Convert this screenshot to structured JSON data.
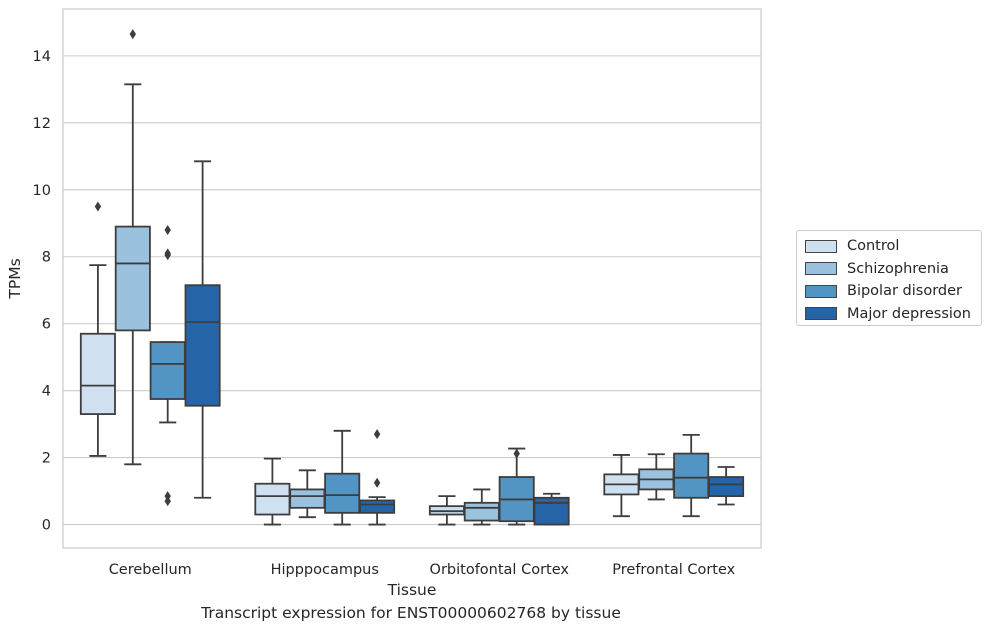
{
  "chart_data": {
    "type": "box",
    "caption": "Transcript expression for ENST00000602768 by tissue",
    "xlabel": "Tissue",
    "ylabel": "TPMs",
    "ylim": [
      -0.7,
      15.4
    ],
    "yticks": [
      0,
      2,
      4,
      6,
      8,
      10,
      12,
      14
    ],
    "grid": "horizontal",
    "legend_position": "right",
    "categories": [
      "Cerebellum",
      "Hipppocampus",
      "Orbitofontal Cortex",
      "Prefrontal Cortex"
    ],
    "series": [
      {
        "name": "Control",
        "color": "#cfe0f1",
        "boxes": [
          {
            "whislo": 2.05,
            "q1": 3.3,
            "med": 4.15,
            "q3": 5.7,
            "whishi": 7.75,
            "fliers": [
              9.5
            ]
          },
          {
            "whislo": 0.0,
            "q1": 0.3,
            "med": 0.85,
            "q3": 1.22,
            "whishi": 1.97,
            "fliers": []
          },
          {
            "whislo": 0.0,
            "q1": 0.3,
            "med": 0.4,
            "q3": 0.55,
            "whishi": 0.85,
            "fliers": []
          },
          {
            "whislo": 0.25,
            "q1": 0.9,
            "med": 1.2,
            "q3": 1.5,
            "whishi": 2.08,
            "fliers": []
          }
        ]
      },
      {
        "name": "Schizophrenia",
        "color": "#9ac2de",
        "boxes": [
          {
            "whislo": 1.8,
            "q1": 5.8,
            "med": 7.8,
            "q3": 8.9,
            "whishi": 13.15,
            "fliers": [
              14.65
            ]
          },
          {
            "whislo": 0.22,
            "q1": 0.5,
            "med": 0.85,
            "q3": 1.05,
            "whishi": 1.62,
            "fliers": []
          },
          {
            "whislo": 0.0,
            "q1": 0.12,
            "med": 0.5,
            "q3": 0.65,
            "whishi": 1.05,
            "fliers": []
          },
          {
            "whislo": 0.75,
            "q1": 1.05,
            "med": 1.35,
            "q3": 1.65,
            "whishi": 2.1,
            "fliers": []
          }
        ]
      },
      {
        "name": "Bipolar disorder",
        "color": "#5294c4",
        "boxes": [
          {
            "whislo": 3.05,
            "q1": 3.75,
            "med": 4.8,
            "q3": 5.45,
            "whishi": 5.45,
            "fliers": [
              8.8,
              8.1,
              8.05,
              0.85,
              0.7
            ]
          },
          {
            "whislo": 0.0,
            "q1": 0.35,
            "med": 0.88,
            "q3": 1.52,
            "whishi": 2.8,
            "fliers": []
          },
          {
            "whislo": 0.0,
            "q1": 0.1,
            "med": 0.75,
            "q3": 1.42,
            "whishi": 2.27,
            "fliers": [
              2.12
            ]
          },
          {
            "whislo": 0.25,
            "q1": 0.8,
            "med": 1.4,
            "q3": 2.12,
            "whishi": 2.68,
            "fliers": []
          }
        ]
      },
      {
        "name": "Major depression",
        "color": "#2565a7",
        "boxes": [
          {
            "whislo": 0.8,
            "q1": 3.55,
            "med": 6.05,
            "q3": 7.15,
            "whishi": 10.85,
            "fliers": []
          },
          {
            "whislo": 0.0,
            "q1": 0.35,
            "med": 0.6,
            "q3": 0.72,
            "whishi": 0.82,
            "fliers": [
              2.7,
              1.25
            ]
          },
          {
            "whislo": 0.0,
            "q1": 0.0,
            "med": 0.65,
            "q3": 0.8,
            "whishi": 0.92,
            "fliers": []
          },
          {
            "whislo": 0.6,
            "q1": 0.85,
            "med": 1.2,
            "q3": 1.42,
            "whishi": 1.72,
            "fliers": []
          }
        ]
      }
    ]
  }
}
